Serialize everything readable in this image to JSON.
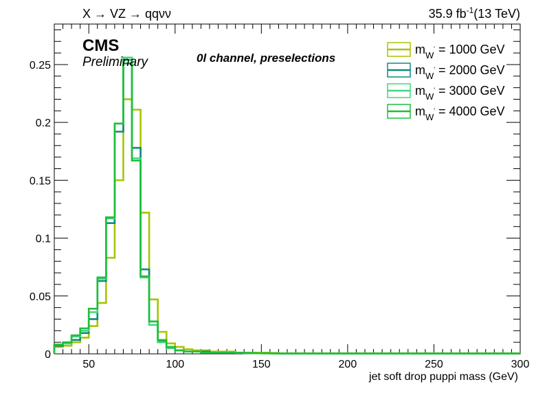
{
  "header": {
    "process": "X → VZ → qqνν",
    "lumi": "35.9 fb",
    "lumi_exp": "-1",
    "energy": "(13 TeV)"
  },
  "labels": {
    "experiment": "CMS",
    "status": "Preliminary",
    "channel": "0l channel, preselections"
  },
  "chart_data": {
    "type": "line",
    "title": "",
    "xlabel": "jet soft drop puppi mass (GeV)",
    "ylabel": "",
    "xlim": [
      30,
      300
    ],
    "ylim": [
      0,
      0.285
    ],
    "grid": false,
    "legend_position": "top-right",
    "xticks": [
      50,
      100,
      150,
      200,
      250,
      300
    ],
    "xtick_labels": [
      "50",
      "100",
      "150",
      "200",
      "250",
      "300"
    ],
    "yticks": [
      0,
      0.05,
      0.1,
      0.15,
      0.2,
      0.25
    ],
    "ytick_labels": [
      "0",
      "0.05",
      "0.1",
      "0.15",
      "0.2",
      "0.25"
    ],
    "bin_edges": [
      30,
      35,
      40,
      45,
      50,
      55,
      60,
      65,
      70,
      75,
      80,
      85,
      90,
      95,
      100,
      105,
      110,
      115,
      120,
      125,
      130,
      135,
      140,
      145,
      150,
      155,
      160,
      300
    ],
    "series": [
      {
        "name": "m = 1000 GeV",
        "mass": "1000",
        "color": "#a8c400",
        "values": [
          0.006,
          0.007,
          0.01,
          0.014,
          0.024,
          0.044,
          0.083,
          0.15,
          0.22,
          0.211,
          0.122,
          0.047,
          0.019,
          0.009,
          0.006,
          0.004,
          0.003,
          0.003,
          0.002,
          0.002,
          0.002,
          0.001,
          0.001,
          0.001,
          0.001,
          0.0008,
          0.0005
        ]
      },
      {
        "name": "m = 2000 GeV",
        "mass": "2000",
        "color": "#0f8a80",
        "values": [
          0.007,
          0.009,
          0.012,
          0.018,
          0.03,
          0.063,
          0.113,
          0.192,
          0.251,
          0.178,
          0.073,
          0.028,
          0.011,
          0.005,
          0.003,
          0.002,
          0.002,
          0.002,
          0.001,
          0.001,
          0.001,
          0.001,
          0.0008,
          0.0006,
          0.0005,
          0.0004,
          0.0003
        ]
      },
      {
        "name": "m = 3000 GeV",
        "mass": "3000",
        "color": "#42d67f",
        "values": [
          0.008,
          0.009,
          0.015,
          0.02,
          0.036,
          0.065,
          0.117,
          0.199,
          0.256,
          0.169,
          0.066,
          0.025,
          0.01,
          0.005,
          0.003,
          0.002,
          0.002,
          0.001,
          0.001,
          0.001,
          0.001,
          0.0008,
          0.0006,
          0.0005,
          0.0004,
          0.0003,
          0.0002
        ]
      },
      {
        "name": "m = 4000 GeV",
        "mass": "4000",
        "color": "#1fbf3a",
        "values": [
          0.008,
          0.01,
          0.016,
          0.022,
          0.039,
          0.066,
          0.118,
          0.199,
          0.254,
          0.167,
          0.067,
          0.028,
          0.012,
          0.006,
          0.003,
          0.002,
          0.002,
          0.001,
          0.001,
          0.001,
          0.001,
          0.0008,
          0.0006,
          0.0005,
          0.0004,
          0.0003,
          0.0002
        ]
      }
    ]
  }
}
